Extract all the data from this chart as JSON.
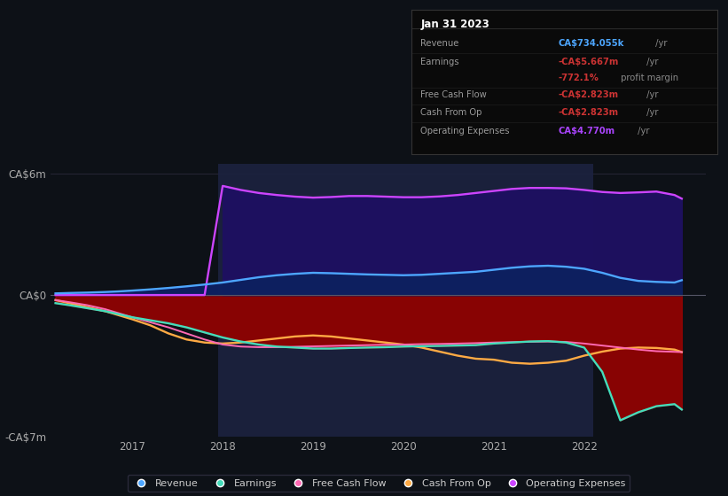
{
  "bg_color": "#0d1117",
  "plot_bg_color": "#0d1117",
  "ylim": [
    -7000000,
    6500000
  ],
  "xlim_start": 2016.1,
  "xlim_end": 2023.35,
  "xticks": [
    2017,
    2018,
    2019,
    2020,
    2021,
    2022
  ],
  "highlight_start": 2017.95,
  "highlight_end": 2022.1,
  "series": {
    "x": [
      2016.15,
      2016.3,
      2016.5,
      2016.7,
      2016.85,
      2017.0,
      2017.2,
      2017.4,
      2017.6,
      2017.8,
      2018.0,
      2018.2,
      2018.4,
      2018.6,
      2018.8,
      2019.0,
      2019.2,
      2019.4,
      2019.6,
      2019.8,
      2020.0,
      2020.2,
      2020.4,
      2020.6,
      2020.8,
      2021.0,
      2021.2,
      2021.4,
      2021.6,
      2021.8,
      2022.0,
      2022.2,
      2022.4,
      2022.6,
      2022.8,
      2023.0,
      2023.08
    ],
    "revenue": [
      80000,
      100000,
      120000,
      150000,
      180000,
      220000,
      280000,
      350000,
      430000,
      520000,
      620000,
      750000,
      880000,
      980000,
      1050000,
      1100000,
      1080000,
      1050000,
      1020000,
      1000000,
      980000,
      1000000,
      1050000,
      1100000,
      1150000,
      1250000,
      1350000,
      1420000,
      1450000,
      1400000,
      1300000,
      1100000,
      850000,
      700000,
      650000,
      620000,
      734055
    ],
    "earnings": [
      -400000,
      -500000,
      -650000,
      -800000,
      -950000,
      -1100000,
      -1250000,
      -1400000,
      -1600000,
      -1850000,
      -2100000,
      -2300000,
      -2450000,
      -2550000,
      -2600000,
      -2650000,
      -2650000,
      -2620000,
      -2600000,
      -2580000,
      -2550000,
      -2530000,
      -2520000,
      -2500000,
      -2480000,
      -2400000,
      -2350000,
      -2300000,
      -2280000,
      -2350000,
      -2600000,
      -3800000,
      -6200000,
      -5800000,
      -5500000,
      -5400000,
      -5667000
    ],
    "free_cash_flow": [
      -250000,
      -350000,
      -500000,
      -700000,
      -900000,
      -1100000,
      -1350000,
      -1600000,
      -1900000,
      -2200000,
      -2450000,
      -2550000,
      -2580000,
      -2580000,
      -2560000,
      -2540000,
      -2520000,
      -2500000,
      -2480000,
      -2460000,
      -2450000,
      -2430000,
      -2420000,
      -2400000,
      -2380000,
      -2350000,
      -2330000,
      -2310000,
      -2300000,
      -2320000,
      -2400000,
      -2500000,
      -2600000,
      -2700000,
      -2780000,
      -2810000,
      -2823000
    ],
    "cash_from_op": [
      -250000,
      -400000,
      -600000,
      -800000,
      -1000000,
      -1200000,
      -1500000,
      -1900000,
      -2200000,
      -2350000,
      -2400000,
      -2350000,
      -2250000,
      -2150000,
      -2050000,
      -2000000,
      -2050000,
      -2150000,
      -2250000,
      -2350000,
      -2450000,
      -2600000,
      -2800000,
      -3000000,
      -3150000,
      -3200000,
      -3350000,
      -3400000,
      -3350000,
      -3250000,
      -3000000,
      -2800000,
      -2650000,
      -2600000,
      -2620000,
      -2700000,
      -2823000
    ],
    "op_expenses": [
      0,
      0,
      0,
      0,
      0,
      0,
      0,
      0,
      0,
      0,
      5400000,
      5200000,
      5050000,
      4950000,
      4870000,
      4820000,
      4850000,
      4900000,
      4900000,
      4870000,
      4840000,
      4840000,
      4880000,
      4950000,
      5050000,
      5150000,
      5250000,
      5300000,
      5300000,
      5280000,
      5200000,
      5100000,
      5050000,
      5080000,
      5120000,
      4950000,
      4770000
    ]
  }
}
